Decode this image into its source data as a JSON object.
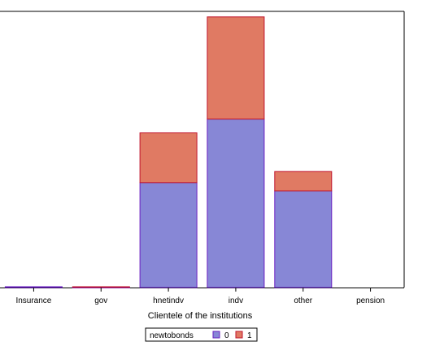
{
  "chart_data": {
    "type": "bar",
    "stacked": true,
    "categories": [
      "Insurance",
      "gov",
      "hnetindv",
      "indv",
      "other",
      "pension"
    ],
    "series": [
      {
        "name": "0",
        "values": [
          0.3,
          0.1,
          38,
          61,
          35,
          0
        ]
      },
      {
        "name": "1",
        "values": [
          0,
          0.2,
          18,
          37,
          7,
          0
        ]
      }
    ],
    "xlabel": "Clientele of the institutions",
    "ylabel": "",
    "ylim": [
      0,
      100
    ],
    "grid": false,
    "legend": {
      "title": "newtobonds",
      "placement": "bottom-center",
      "entries": [
        "0",
        "1"
      ]
    },
    "colors": {
      "series_0_fill": "#8787d6",
      "series_0_stroke": "#6a1fc2",
      "series_1_fill": "#e07a63",
      "series_1_stroke": "#c0142c",
      "axis": "#000000"
    }
  }
}
